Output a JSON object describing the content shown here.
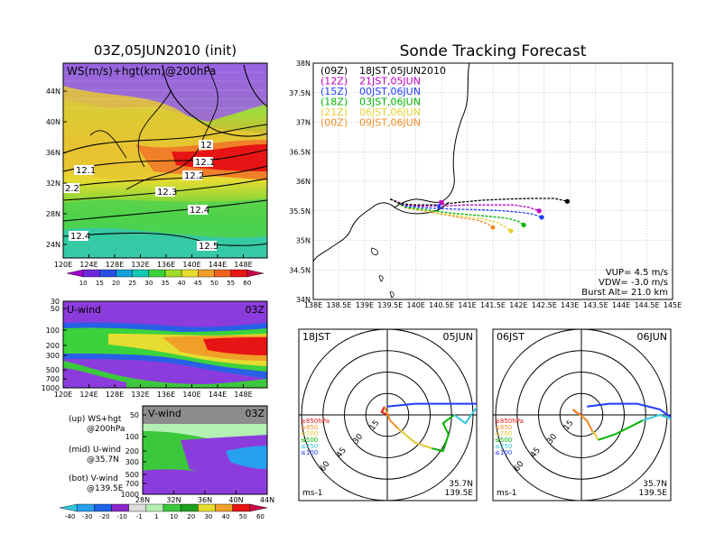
{
  "left_panel": {
    "title": "03Z,05JUN2010 (init)",
    "map_label": "WS(m/s)+hgt(km)@200hPa",
    "lat_ticks": [
      "44N",
      "40N",
      "36N",
      "32N",
      "28N",
      "24N"
    ],
    "lon_ticks": [
      "120E",
      "124E",
      "128E",
      "132E",
      "136E",
      "140E",
      "144E",
      "148E"
    ],
    "contour_labels": [
      "12",
      "12.1",
      "12.1",
      "12.2",
      "12.3",
      "12.4",
      "12.4",
      "12.5",
      "2.2"
    ],
    "colorbar_ticks": [
      "10",
      "15",
      "20",
      "25",
      "30",
      "35",
      "40",
      "45",
      "50",
      "55",
      "60"
    ],
    "colorbar_colors": [
      "#a000c8",
      "#6e28dc",
      "#2850e6",
      "#14a0dc",
      "#14c8b4",
      "#3cd23c",
      "#a0dc28",
      "#e6dc32",
      "#f0a028",
      "#f0641e",
      "#e61414",
      "#c80a46"
    ]
  },
  "u_panel": {
    "label": "U-wind",
    "time": "03Z",
    "pressure_ticks": [
      "30",
      "50",
      "100",
      "200",
      "300",
      "500",
      "700",
      "1000"
    ],
    "lon_ticks": [
      "120E",
      "124E",
      "128E",
      "132E",
      "136E",
      "140E",
      "144E",
      "148E"
    ]
  },
  "v_panel": {
    "label": "V-wind",
    "time": "03Z",
    "pressure_ticks": [
      "50",
      "100",
      "200",
      "300",
      "500",
      "700",
      "1000"
    ],
    "lat_ticks": [
      "28N",
      "32N",
      "36N",
      "40N",
      "44N"
    ]
  },
  "legend_notes": {
    "up_line1": "(up) WS+hgt",
    "up_line2": "@200hPa",
    "mid_line1": "(mid) U-wind",
    "mid_line2": "@35.7N",
    "bot_line1": "(bot) V-wind",
    "bot_line2": "@139.5E"
  },
  "bottom_colorbar": {
    "ticks": [
      "-40",
      "-30",
      "-20",
      "-10",
      "-1",
      "1",
      "10",
      "20",
      "30",
      "40",
      "50",
      "60"
    ],
    "colors": [
      "#32c8dc",
      "#28a0f0",
      "#1e64e6",
      "#8c28c8",
      "#dcdcdc",
      "#b4f0b4",
      "#3cc83c",
      "#1ea01e",
      "#e6dc32",
      "#f0a028",
      "#e61414",
      "#c80a46"
    ]
  },
  "right_panel": {
    "title": "Sonde Tracking Forecast",
    "lat_ticks": [
      "38N",
      "37.5N",
      "37N",
      "36.5N",
      "36N",
      "35.5N",
      "35N",
      "34.5N",
      "34N"
    ],
    "lon_ticks": [
      "138E",
      "138.5E",
      "139E",
      "139.5E",
      "140E",
      "140.5E",
      "141E",
      "141.5E",
      "142E",
      "142.5E",
      "143E",
      "143.5E",
      "144E",
      "144.5E",
      "145E"
    ],
    "legend": [
      {
        "code": "(09Z)",
        "when": "18JST,05JUN2010",
        "color": "#000000"
      },
      {
        "code": "(12Z)",
        "when": "21JST,05JUN",
        "color": "#c000c0"
      },
      {
        "code": "(15Z)",
        "when": "00JST,06JUN",
        "color": "#1e3cff"
      },
      {
        "code": "(18Z)",
        "when": "03JST,06JUN",
        "color": "#00b400"
      },
      {
        "code": "(21Z)",
        "when": "06JST,06JUN",
        "color": "#e6d232"
      },
      {
        "code": "(00Z)",
        "when": "09JST,06JUN",
        "color": "#f08c28"
      }
    ],
    "vup": "VUP= 4.5 m/s",
    "vdw": "VDW= -3.0 m/s",
    "burst": "Burst Alt= 21.0 km"
  },
  "hodo_left": {
    "time": "18JST",
    "date": "05JUN",
    "lat": "35.7N",
    "lon": "139.5E",
    "unit": "ms-1",
    "rings": [
      "15",
      "30",
      "45",
      "60"
    ],
    "levels": [
      {
        "label": "≥850hPa",
        "color": "#e61414"
      },
      {
        "label": "≤850",
        "color": "#f08c28"
      },
      {
        "label": "≤700",
        "color": "#e6c832"
      },
      {
        "label": "≤500",
        "color": "#00b400"
      },
      {
        "label": "≤250",
        "color": "#32c8dc"
      },
      {
        "label": "≤100",
        "color": "#1e3cff"
      }
    ]
  },
  "hodo_right": {
    "time": "06JST",
    "date": "06JUN",
    "lat": "35.7N",
    "lon": "139.5E",
    "unit": "ms-1",
    "rings": [
      "15",
      "30",
      "45",
      "60"
    ],
    "levels": [
      {
        "label": "≥850hPa",
        "color": "#e61414"
      },
      {
        "label": "≤850",
        "color": "#f08c28"
      },
      {
        "label": "≤700",
        "color": "#e6c832"
      },
      {
        "label": "≤500",
        "color": "#00b400"
      },
      {
        "label": "≤250",
        "color": "#32c8dc"
      },
      {
        "label": "≤100",
        "color": "#1e3cff"
      }
    ]
  },
  "chart_data": [
    {
      "type": "heatmap",
      "title": "03Z,05JUN2010 (init)",
      "annotation": "WS(m/s)+hgt(km)@200hPa",
      "xlim": [
        120,
        150
      ],
      "ylim": [
        22,
        48
      ],
      "colorbar": [
        10,
        15,
        20,
        25,
        30,
        35,
        40,
        45,
        50,
        55,
        60
      ],
      "contours_km": [
        12,
        12.1,
        12.2,
        12.3,
        12.4,
        12.5
      ]
    },
    {
      "type": "heatmap",
      "title": "U-wind",
      "annotation": "03Z",
      "x_ticks": [
        "120E",
        "124E",
        "128E",
        "132E",
        "136E",
        "140E",
        "144E",
        "148E"
      ],
      "y_ticks_hPa": [
        30,
        50,
        100,
        200,
        300,
        500,
        700,
        1000
      ]
    },
    {
      "type": "heatmap",
      "title": "V-wind",
      "annotation": "03Z",
      "x_ticks": [
        "28N",
        "32N",
        "36N",
        "40N",
        "44N"
      ],
      "y_ticks_hPa": [
        50,
        100,
        200,
        300,
        500,
        700,
        1000
      ]
    },
    {
      "type": "line",
      "title": "Sonde Tracking Forecast",
      "xlim": [
        138,
        145
      ],
      "ylim": [
        34,
        38
      ],
      "series": [
        {
          "name": "(09Z) 18JST,05JUN2010",
          "color": "#000000",
          "x": [
            139.5,
            139.7,
            140.0,
            140.4,
            140.8,
            141.3,
            141.8,
            142.3,
            142.7,
            142.95
          ],
          "y": [
            35.7,
            35.62,
            35.6,
            35.6,
            35.64,
            35.68,
            35.7,
            35.71,
            35.71,
            35.66
          ]
        },
        {
          "name": "(12Z) 21JST,05JUN",
          "color": "#c000c0",
          "x": [
            139.5,
            139.8,
            140.1,
            140.5,
            141.0,
            141.5,
            141.9,
            142.2,
            142.4
          ],
          "y": [
            35.7,
            35.6,
            35.58,
            35.58,
            35.6,
            35.6,
            35.6,
            35.56,
            35.5
          ]
        },
        {
          "name": "(15Z) 00JST,06JUN",
          "color": "#1e3cff",
          "x": [
            139.5,
            139.8,
            140.2,
            140.7,
            141.2,
            141.7,
            142.1,
            142.3,
            142.45
          ],
          "y": [
            35.7,
            35.58,
            35.55,
            35.53,
            35.52,
            35.5,
            35.47,
            35.44,
            35.39
          ]
        },
        {
          "name": "(18Z) 03JST,06JUN",
          "color": "#00b400",
          "x": [
            139.5,
            139.8,
            140.2,
            140.6,
            141.1,
            141.5,
            141.8,
            142.0,
            142.1
          ],
          "y": [
            35.7,
            35.56,
            35.52,
            35.47,
            35.43,
            35.4,
            35.37,
            35.32,
            35.26
          ]
        },
        {
          "name": "(21Z) 06JST,06JUN",
          "color": "#e6d232",
          "x": [
            139.5,
            139.8,
            140.2,
            140.6,
            141.0,
            141.3,
            141.6,
            141.75,
            141.85
          ],
          "y": [
            35.7,
            35.56,
            35.5,
            35.44,
            35.4,
            35.36,
            35.3,
            35.22,
            35.16
          ]
        },
        {
          "name": "(00Z) 09JST,06JUN",
          "color": "#f08c28",
          "x": [
            139.5,
            139.8,
            140.2,
            140.6,
            140.9,
            141.2,
            141.4,
            141.5
          ],
          "y": [
            35.7,
            35.55,
            35.49,
            35.43,
            35.38,
            35.34,
            35.28,
            35.22
          ]
        }
      ]
    },
    {
      "type": "line",
      "title": "18JST 05JUN",
      "rings_ms": [
        15,
        30,
        45,
        60
      ],
      "series": [
        {
          "level": "≥850hPa",
          "color": "#e61414",
          "u": [
            0,
            -2,
            -1
          ],
          "v": [
            0,
            1,
            3
          ]
        },
        {
          "level": "≤850",
          "color": "#f08c28",
          "u": [
            -1,
            1,
            4
          ],
          "v": [
            3,
            -2,
            -5
          ]
        },
        {
          "level": "≤700",
          "color": "#e6c832",
          "u": [
            4,
            10,
            16
          ],
          "v": [
            -5,
            -10,
            -12
          ]
        },
        {
          "level": "≤500",
          "color": "#00b400",
          "u": [
            16,
            20,
            22,
            20,
            24
          ],
          "v": [
            -12,
            -13,
            -7,
            -3,
            0
          ]
        },
        {
          "level": "≤250",
          "color": "#32c8dc",
          "u": [
            24,
            28,
            33
          ],
          "v": [
            0,
            -3,
            4
          ]
        },
        {
          "level": "≤100",
          "color": "#1e3cff",
          "u": [
            33,
            20,
            10,
            0
          ],
          "v": [
            4,
            4,
            4,
            3
          ]
        }
      ]
    },
    {
      "type": "line",
      "title": "06JST 06JUN",
      "rings_ms": [
        15,
        30,
        45,
        60
      ],
      "series": [
        {
          "level": "≥850hPa",
          "color": "#e61414",
          "u": [
            0,
            -2,
            -3
          ],
          "v": [
            0,
            1,
            2
          ]
        },
        {
          "level": "≤850",
          "color": "#f08c28",
          "u": [
            -3,
            2,
            4
          ],
          "v": [
            2,
            -2,
            -6
          ]
        },
        {
          "level": "≤700",
          "color": "#e6c832",
          "u": [
            4,
            5,
            6
          ],
          "v": [
            -6,
            -7,
            -9
          ]
        },
        {
          "level": "≤500",
          "color": "#00b400",
          "u": [
            6,
            12,
            18,
            22
          ],
          "v": [
            -9,
            -7,
            -4,
            -2
          ]
        },
        {
          "level": "≤250",
          "color": "#32c8dc",
          "u": [
            22,
            28,
            34
          ],
          "v": [
            -2,
            0,
            -2
          ]
        },
        {
          "level": "≤100",
          "color": "#1e3cff",
          "u": [
            34,
            28,
            20,
            10,
            2
          ],
          "v": [
            -2,
            2,
            4,
            4,
            3
          ]
        }
      ]
    }
  ]
}
